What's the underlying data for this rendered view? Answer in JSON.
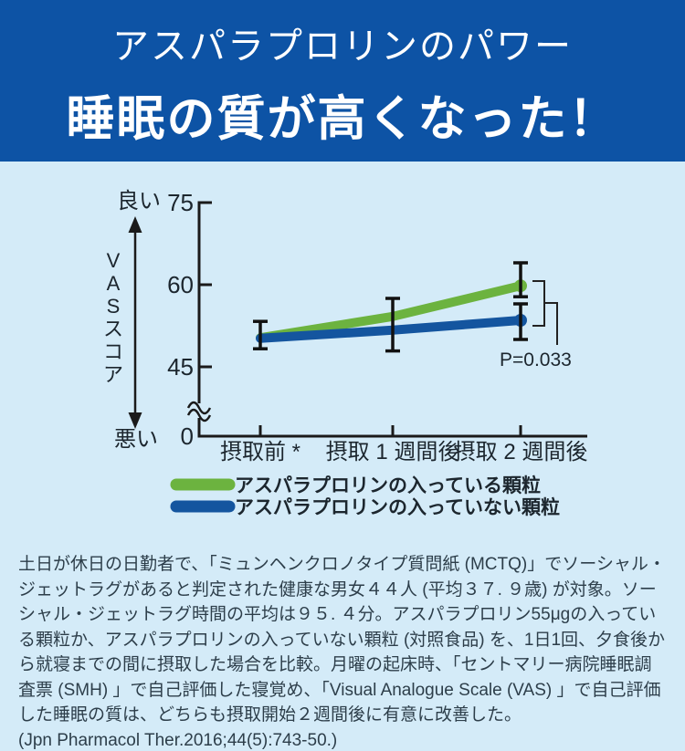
{
  "header": {
    "subtitle": "アスパラプロリンのパワー",
    "title": "睡眠の質が高くなった！"
  },
  "chart": {
    "y_axis": {
      "good_label": "良い",
      "bad_label": "悪い",
      "axis_label": "VASスコア"
    }
  },
  "chart_data": {
    "type": "line",
    "categories": [
      "摂取前 *",
      "摂取 1 週間後",
      "摂取 2 週間後"
    ],
    "series": [
      {
        "name": "アスパラプロリンの入っている顆粒",
        "color": "#6cb33f",
        "values": [
          50.3,
          54.2,
          59.8
        ]
      },
      {
        "name": "アスパラプロリンの入っていない顆粒",
        "color": "#14559f",
        "values": [
          50.2,
          51.7,
          53.5
        ]
      }
    ],
    "error_bars": [
      {
        "x": 0,
        "low": 48.3,
        "high": 53.3
      },
      {
        "x": 1,
        "low": 47.9,
        "high": 57.5
      },
      {
        "x": 2,
        "low": 57.8,
        "high": 64.0
      },
      {
        "x": 2,
        "low": 50.0,
        "high": 56.5
      }
    ],
    "y_ticks": [
      75,
      60,
      45,
      0
    ],
    "ylabel": "VASスコア",
    "ylabel_good": "良い",
    "ylabel_bad": "悪い",
    "ylim_display": [
      45,
      75
    ],
    "axis_break": true,
    "annotation": "P=0.033",
    "legend_position": "bottom",
    "grid": false
  },
  "body": {
    "paragraph": "土日が休日の日勤者で、「ミュンヘンクロノタイプ質問紙 (MCTQ)」でソーシャル・ジェットラグがあると判定された健康な男女４４人 (平均３７. ９歳) が対象。ソーシャル・ジェットラグ時間の平均は９５. ４分。アスパラプロリン55μgの入っている顆粒か、アスパラプロリンの入っていない顆粒 (対照食品) を、1日1回、夕食後から就寝までの間に摂取した場合を比較。月曜の起床時、「セントマリー病院睡眠調査票 (SMH) 」で自己評価した寝覚め、「Visual Analogue Scale (VAS) 」で自己評価した睡眠の質は、どちらも摂取開始２週間後に有意に改善した。",
    "citation": "(Jpn Pharmacol Ther.2016;44(5):743-50.)"
  },
  "colors": {
    "header_bg": "#0d53a5",
    "page_bg": "#d4ebf8",
    "green": "#6cb33f",
    "blue": "#14559f",
    "axis": "#1a1a1a",
    "text": "#2d3e4a"
  }
}
